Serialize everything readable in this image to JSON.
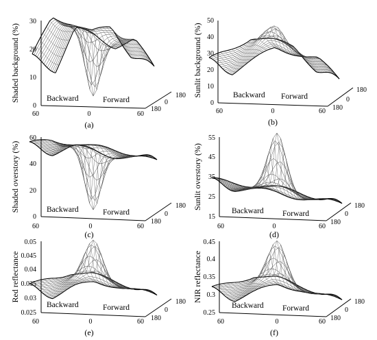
{
  "figure": {
    "panels": [
      {
        "tag": "(a)",
        "ylabel": "Shaded background (%)",
        "yticks": [
          "0",
          "10",
          "20",
          "30"
        ],
        "backward_label": "Backward",
        "forward_label": "Forward",
        "x_ticks": [
          "60",
          "0",
          "60"
        ],
        "azimuth_ticks": [
          "180",
          "0",
          "180"
        ]
      },
      {
        "tag": "(b)",
        "ylabel": "Sunlit background (%)",
        "yticks": [
          "0",
          "10",
          "20",
          "30",
          "40",
          "50"
        ],
        "backward_label": "Backward",
        "forward_label": "Forward",
        "x_ticks": [
          "60",
          "0",
          "60"
        ],
        "azimuth_ticks": [
          "180",
          "0",
          "180"
        ]
      },
      {
        "tag": "(c)",
        "ylabel": "Shaded overstory (%)",
        "yticks": [
          "0",
          "20",
          "40",
          "60"
        ],
        "backward_label": "Backward",
        "forward_label": "Forward",
        "x_ticks": [
          "60",
          "0",
          "60"
        ],
        "azimuth_ticks": [
          "180",
          "0",
          "180"
        ]
      },
      {
        "tag": "(d)",
        "ylabel": "Sunlit overstory (%)",
        "yticks": [
          "15",
          "25",
          "35",
          "45",
          "55"
        ],
        "backward_label": "Backward",
        "forward_label": "Forward",
        "x_ticks": [
          "60",
          "0",
          "60"
        ],
        "azimuth_ticks": [
          "180",
          "0",
          "180"
        ]
      },
      {
        "tag": "(e)",
        "ylabel": "Red reflectance",
        "yticks": [
          "0.025",
          "0.03",
          "0.035",
          "0.04",
          "0.045",
          "0.05"
        ],
        "backward_label": "Backward",
        "forward_label": "Forward",
        "x_ticks": [
          "60",
          "0",
          "60"
        ],
        "azimuth_ticks": [
          "180",
          "0",
          "180"
        ]
      },
      {
        "tag": "(f)",
        "ylabel": "NIR reflectance",
        "yticks": [
          "0.25",
          "0.3",
          "0.35",
          "0.4",
          "0.45"
        ],
        "backward_label": "Backward",
        "forward_label": "Forward",
        "x_ticks": [
          "60",
          "0",
          "60"
        ],
        "azimuth_ticks": [
          "180",
          "0",
          "180"
        ]
      }
    ]
  },
  "chart_data": [
    {
      "type": "surface",
      "xlabel": "",
      "ylabel": "Shaded background (%)",
      "zlim": [
        0,
        30
      ],
      "x_range": [
        -60,
        60
      ],
      "azimuth_range": [
        0,
        180
      ],
      "features": {
        "min_at_hotspot": 1,
        "edge_values": [
          13,
          28,
          26,
          22,
          24,
          14
        ]
      }
    },
    {
      "type": "surface",
      "xlabel": "",
      "ylabel": "Sunlit background (%)",
      "zlim": [
        0,
        50
      ],
      "x_range": [
        -60,
        60
      ],
      "azimuth_range": [
        0,
        180
      ],
      "features": {
        "peak_at_hotspot": 45,
        "edge_values": [
          20,
          27,
          35,
          32,
          28,
          15
        ]
      }
    },
    {
      "type": "surface",
      "xlabel": "",
      "ylabel": "Shaded overstory (%)",
      "zlim": [
        0,
        60
      ],
      "x_range": [
        -60,
        60
      ],
      "azimuth_range": [
        0,
        180
      ],
      "features": {
        "min_at_hotspot": 2,
        "edge_values": [
          48,
          52,
          50,
          46,
          44,
          42
        ]
      }
    },
    {
      "type": "surface",
      "xlabel": "",
      "ylabel": "Sunlit overstory (%)",
      "zlim": [
        15,
        55
      ],
      "x_range": [
        -60,
        60
      ],
      "azimuth_range": [
        0,
        180
      ],
      "features": {
        "peak_at_hotspot": 55,
        "edge_values": [
          29,
          28,
          27,
          25,
          23,
          21
        ]
      }
    },
    {
      "type": "surface",
      "xlabel": "",
      "ylabel": "Red reflectance",
      "zlim": [
        0.025,
        0.05
      ],
      "x_range": [
        -60,
        60
      ],
      "azimuth_range": [
        0,
        180
      ],
      "features": {
        "peak_at_hotspot": 0.049,
        "edge_values": [
          0.031,
          0.034,
          0.036,
          0.035,
          0.033,
          0.031
        ]
      }
    },
    {
      "type": "surface",
      "xlabel": "",
      "ylabel": "NIR reflectance",
      "zlim": [
        0.25,
        0.45
      ],
      "x_range": [
        -60,
        60
      ],
      "azimuth_range": [
        0,
        180
      ],
      "features": {
        "peak_at_hotspot": 0.44,
        "edge_values": [
          0.29,
          0.31,
          0.33,
          0.32,
          0.3,
          0.285
        ]
      }
    }
  ]
}
